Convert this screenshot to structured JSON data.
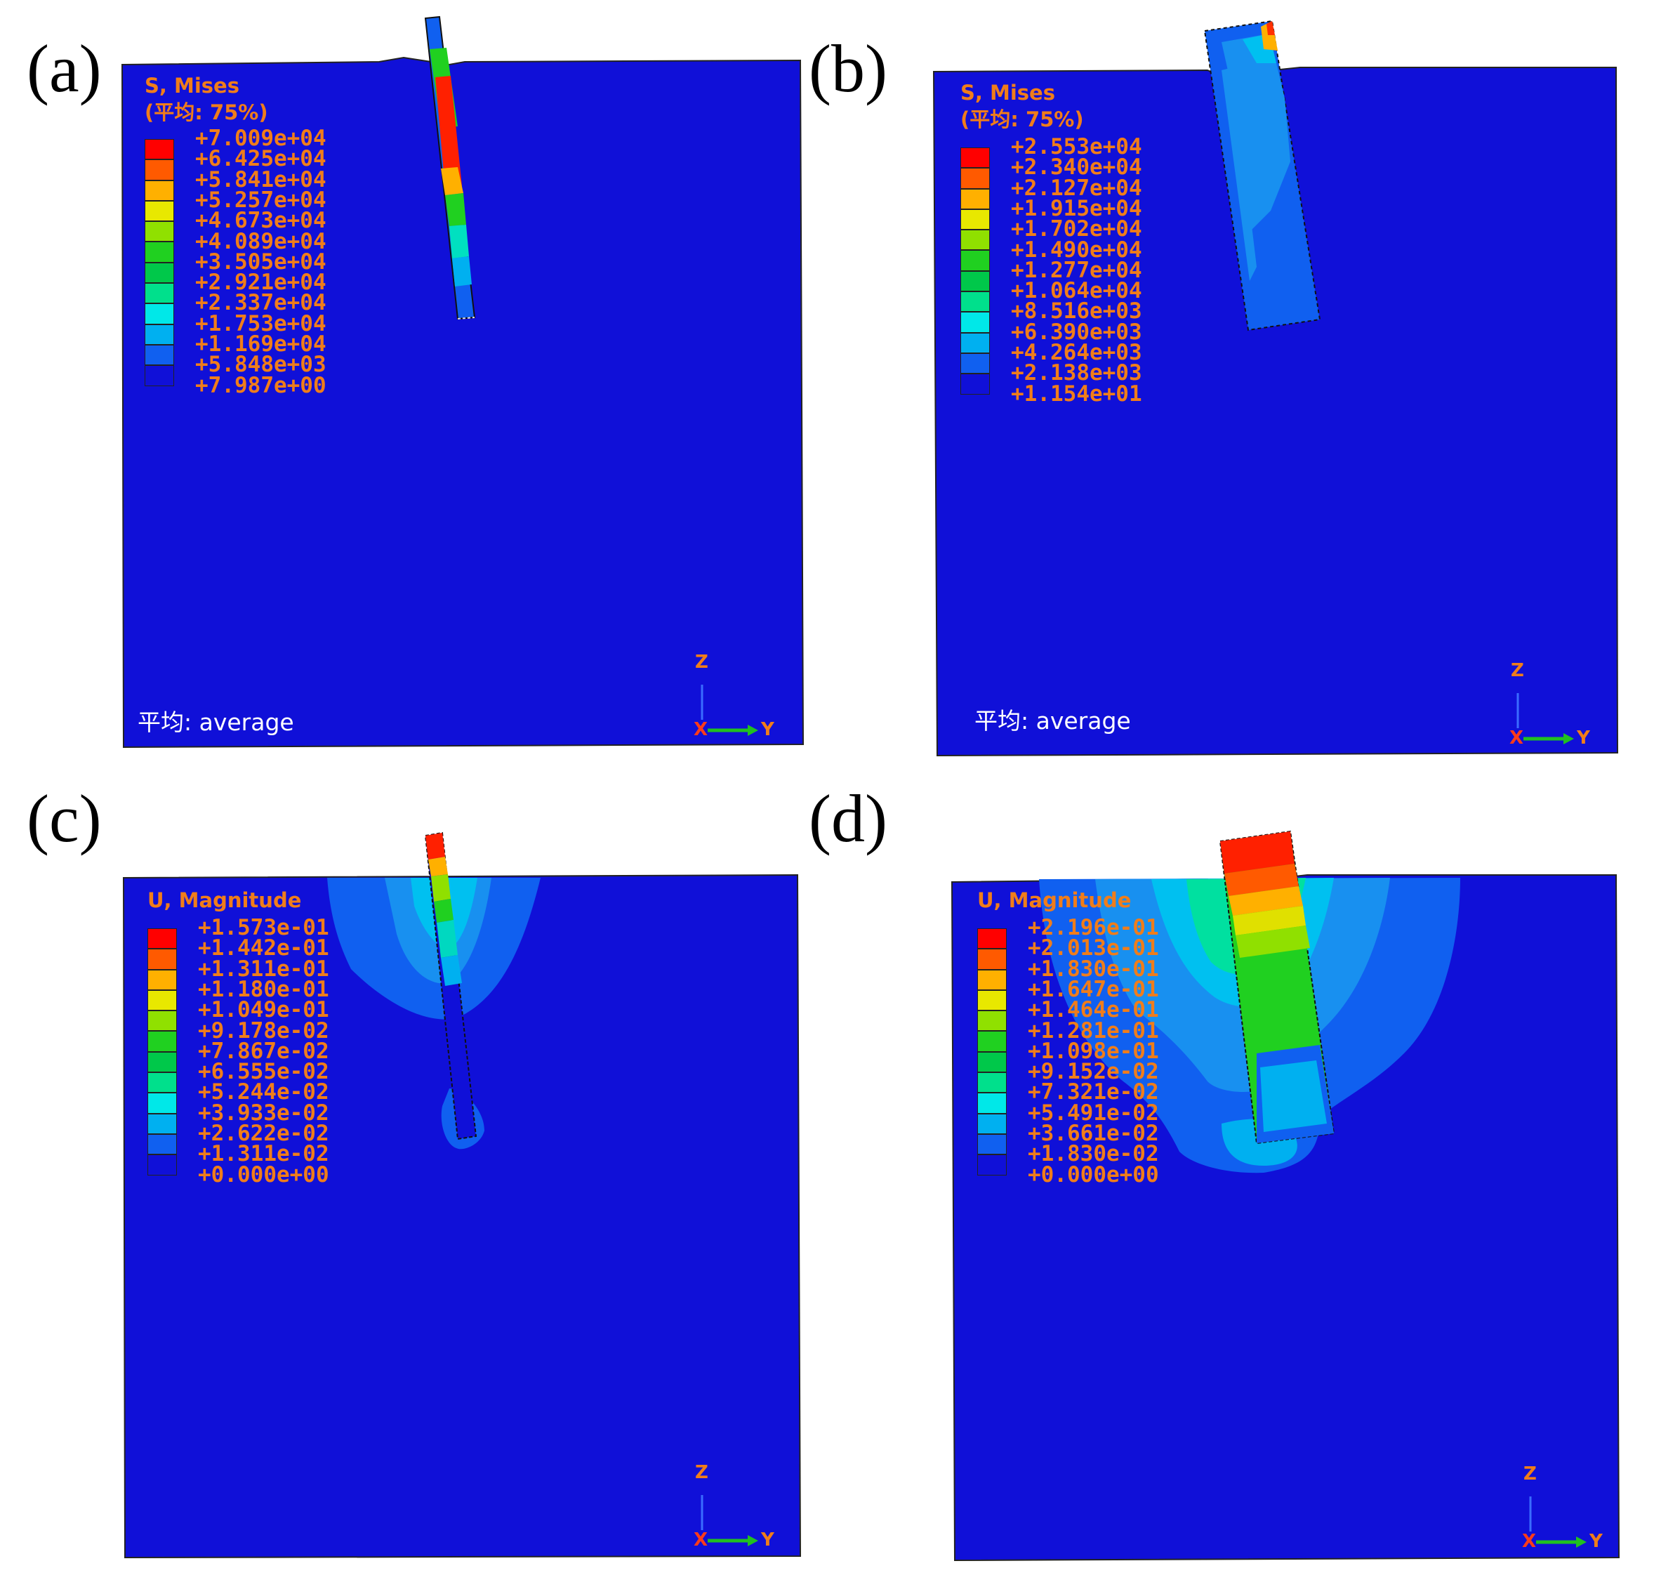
{
  "colors": {
    "background": "#1010d8",
    "legend_text": "#f07d1a",
    "contour_scale": [
      "#ff0000",
      "#ff5a00",
      "#ffb000",
      "#e8e800",
      "#90e000",
      "#20d020",
      "#00c84a",
      "#00e08c",
      "#00e8e8",
      "#00b0f0",
      "#1060f0",
      "#1010d8"
    ]
  },
  "panels": [
    {
      "label": "(a)",
      "legend_title": "S, Mises",
      "legend_subtitle": "(平均: 75%)",
      "values": [
        "+7.009e+04",
        "+6.425e+04",
        "+5.841e+04",
        "+5.257e+04",
        "+4.673e+04",
        "+4.089e+04",
        "+3.505e+04",
        "+2.921e+04",
        "+2.337e+04",
        "+1.753e+04",
        "+1.169e+04",
        "+5.848e+03",
        "+7.987e+00"
      ],
      "note": "平均:  average",
      "axis": {
        "z": "Z",
        "x": "X",
        "y": "Y"
      }
    },
    {
      "label": "(b)",
      "legend_title": "S, Mises",
      "legend_subtitle": "(平均: 75%)",
      "values": [
        "+2.553e+04",
        "+2.340e+04",
        "+2.127e+04",
        "+1.915e+04",
        "+1.702e+04",
        "+1.490e+04",
        "+1.277e+04",
        "+1.064e+04",
        "+8.516e+03",
        "+6.390e+03",
        "+4.264e+03",
        "+2.138e+03",
        "+1.154e+01"
      ],
      "note": "平均:  average",
      "axis": {
        "z": "Z",
        "x": "X",
        "y": "Y"
      }
    },
    {
      "label": "(c)",
      "legend_title": "U, Magnitude",
      "legend_subtitle": "",
      "values": [
        "+1.573e-01",
        "+1.442e-01",
        "+1.311e-01",
        "+1.180e-01",
        "+1.049e-01",
        "+9.178e-02",
        "+7.867e-02",
        "+6.555e-02",
        "+5.244e-02",
        "+3.933e-02",
        "+2.622e-02",
        "+1.311e-02",
        "+0.000e+00"
      ],
      "note": "",
      "axis": {
        "z": "Z",
        "x": "X",
        "y": "Y"
      }
    },
    {
      "label": "(d)",
      "legend_title": "U, Magnitude",
      "legend_subtitle": "",
      "values": [
        "+2.196e-01",
        "+2.013e-01",
        "+1.830e-01",
        "+1.647e-01",
        "+1.464e-01",
        "+1.281e-01",
        "+1.098e-01",
        "+9.152e-02",
        "+7.321e-02",
        "+5.491e-02",
        "+3.661e-02",
        "+1.830e-02",
        "+0.000e+00"
      ],
      "note": "",
      "axis": {
        "z": "Z",
        "x": "X",
        "y": "Y"
      }
    }
  ]
}
